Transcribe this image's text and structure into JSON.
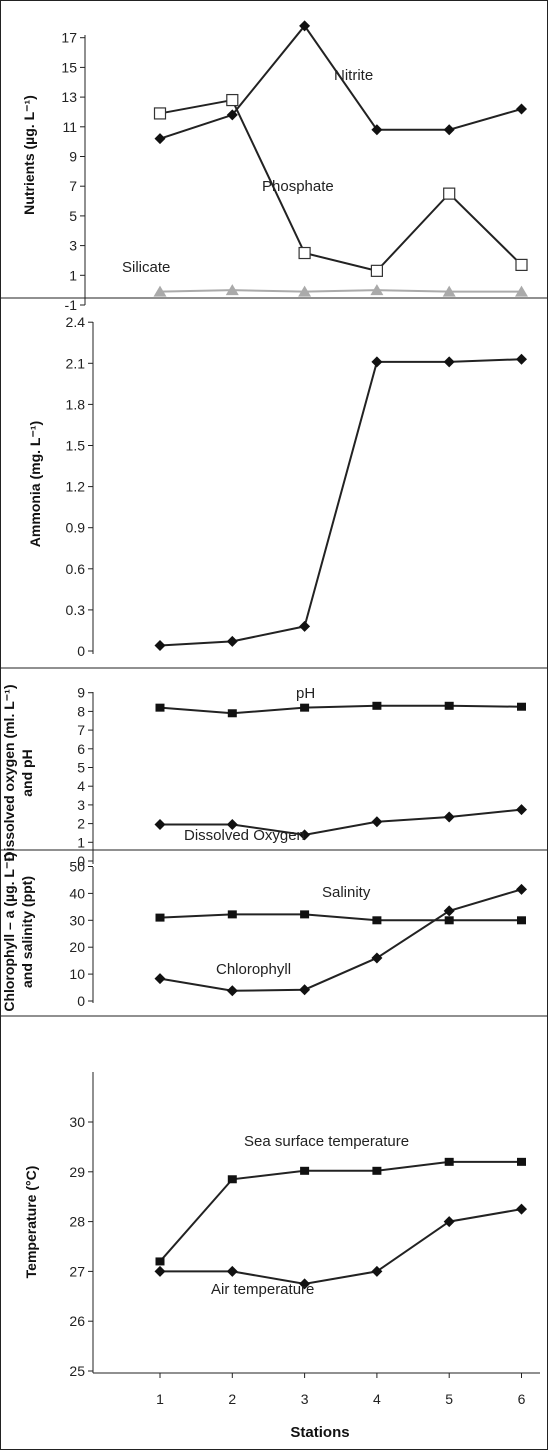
{
  "chart_data": [
    {
      "type": "line",
      "ylabel": "Nutrients (µg. L⁻¹)",
      "ylim": [
        -1,
        18
      ],
      "yticks": [
        "-1",
        "1",
        "3",
        "5",
        "7",
        "9",
        "11",
        "13",
        "15",
        "17"
      ],
      "x": [
        1,
        2,
        3,
        4,
        5,
        6
      ],
      "series": [
        {
          "name": "Nitrite",
          "marker": "diamond",
          "color": "#111111",
          "values": [
            10.2,
            11.8,
            17.8,
            10.8,
            10.8,
            12.2
          ]
        },
        {
          "name": "Phosphate",
          "marker": "open-square",
          "color": "#111111",
          "values": [
            11.9,
            12.8,
            2.5,
            1.3,
            6.5,
            1.7
          ]
        },
        {
          "name": "Silicate",
          "marker": "triangle",
          "color": "#aaaaaa",
          "values": [
            -0.1,
            0.0,
            -0.1,
            0.0,
            -0.1,
            -0.1
          ]
        }
      ]
    },
    {
      "type": "line",
      "ylabel": "Ammonia (mg. L⁻¹)",
      "ylim": [
        0,
        2.4
      ],
      "yticks": [
        "0",
        "0.3",
        "0.6",
        "0.9",
        "1.2",
        "1.5",
        "1.8",
        "2.1",
        "2.4"
      ],
      "x": [
        1,
        2,
        3,
        4,
        5,
        6
      ],
      "series": [
        {
          "name": "",
          "marker": "diamond",
          "color": "#111111",
          "values": [
            0.04,
            0.07,
            0.18,
            2.11,
            2.11,
            2.13
          ]
        }
      ]
    },
    {
      "type": "line",
      "ylabel": [
        "Dissolved oxygen (ml. L⁻¹)",
        "and pH"
      ],
      "ylim": [
        0,
        9
      ],
      "yticks": [
        "0",
        "1",
        "2",
        "3",
        "4",
        "5",
        "6",
        "7",
        "8",
        "9"
      ],
      "x": [
        1,
        2,
        3,
        4,
        5,
        6
      ],
      "series": [
        {
          "name": "pH",
          "marker": "square",
          "color": "#111111",
          "values": [
            8.2,
            7.9,
            8.2,
            8.3,
            8.3,
            8.25
          ]
        },
        {
          "name": "Dissolved Oxygen",
          "marker": "diamond",
          "color": "#111111",
          "values": [
            1.95,
            1.95,
            1.4,
            2.1,
            2.35,
            2.75
          ]
        }
      ]
    },
    {
      "type": "line",
      "ylabel": [
        "Chlorophyll – a (µg. L⁻¹)",
        "and salinity (ppt)"
      ],
      "ylim": [
        0,
        50
      ],
      "yticks": [
        "0",
        "10",
        "20",
        "30",
        "40",
        "50"
      ],
      "x": [
        1,
        2,
        3,
        4,
        5,
        6
      ],
      "series": [
        {
          "name": "Salinity",
          "marker": "square",
          "color": "#111111",
          "values": [
            31,
            32.2,
            32.2,
            30,
            30,
            30
          ]
        },
        {
          "name": "Chlorophyll",
          "marker": "diamond",
          "color": "#111111",
          "values": [
            8.3,
            3.8,
            4.2,
            16,
            33.5,
            41.5
          ]
        }
      ]
    },
    {
      "type": "line",
      "ylabel": "Temperature (°C)",
      "xlabel": "Stations",
      "ylim": [
        25,
        30
      ],
      "yticks": [
        "25",
        "26",
        "27",
        "28",
        "29",
        "30"
      ],
      "x": [
        1,
        2,
        3,
        4,
        5,
        6
      ],
      "xticks": [
        "1",
        "2",
        "3",
        "4",
        "5",
        "6"
      ],
      "series": [
        {
          "name": "Sea surface temperature",
          "marker": "square",
          "color": "#111111",
          "values": [
            27.2,
            28.85,
            29.02,
            29.02,
            29.2,
            29.2
          ]
        },
        {
          "name": "Air temperature",
          "marker": "diamond",
          "color": "#111111",
          "values": [
            27.0,
            27.0,
            26.75,
            27.0,
            28.0,
            28.25
          ]
        }
      ]
    }
  ]
}
